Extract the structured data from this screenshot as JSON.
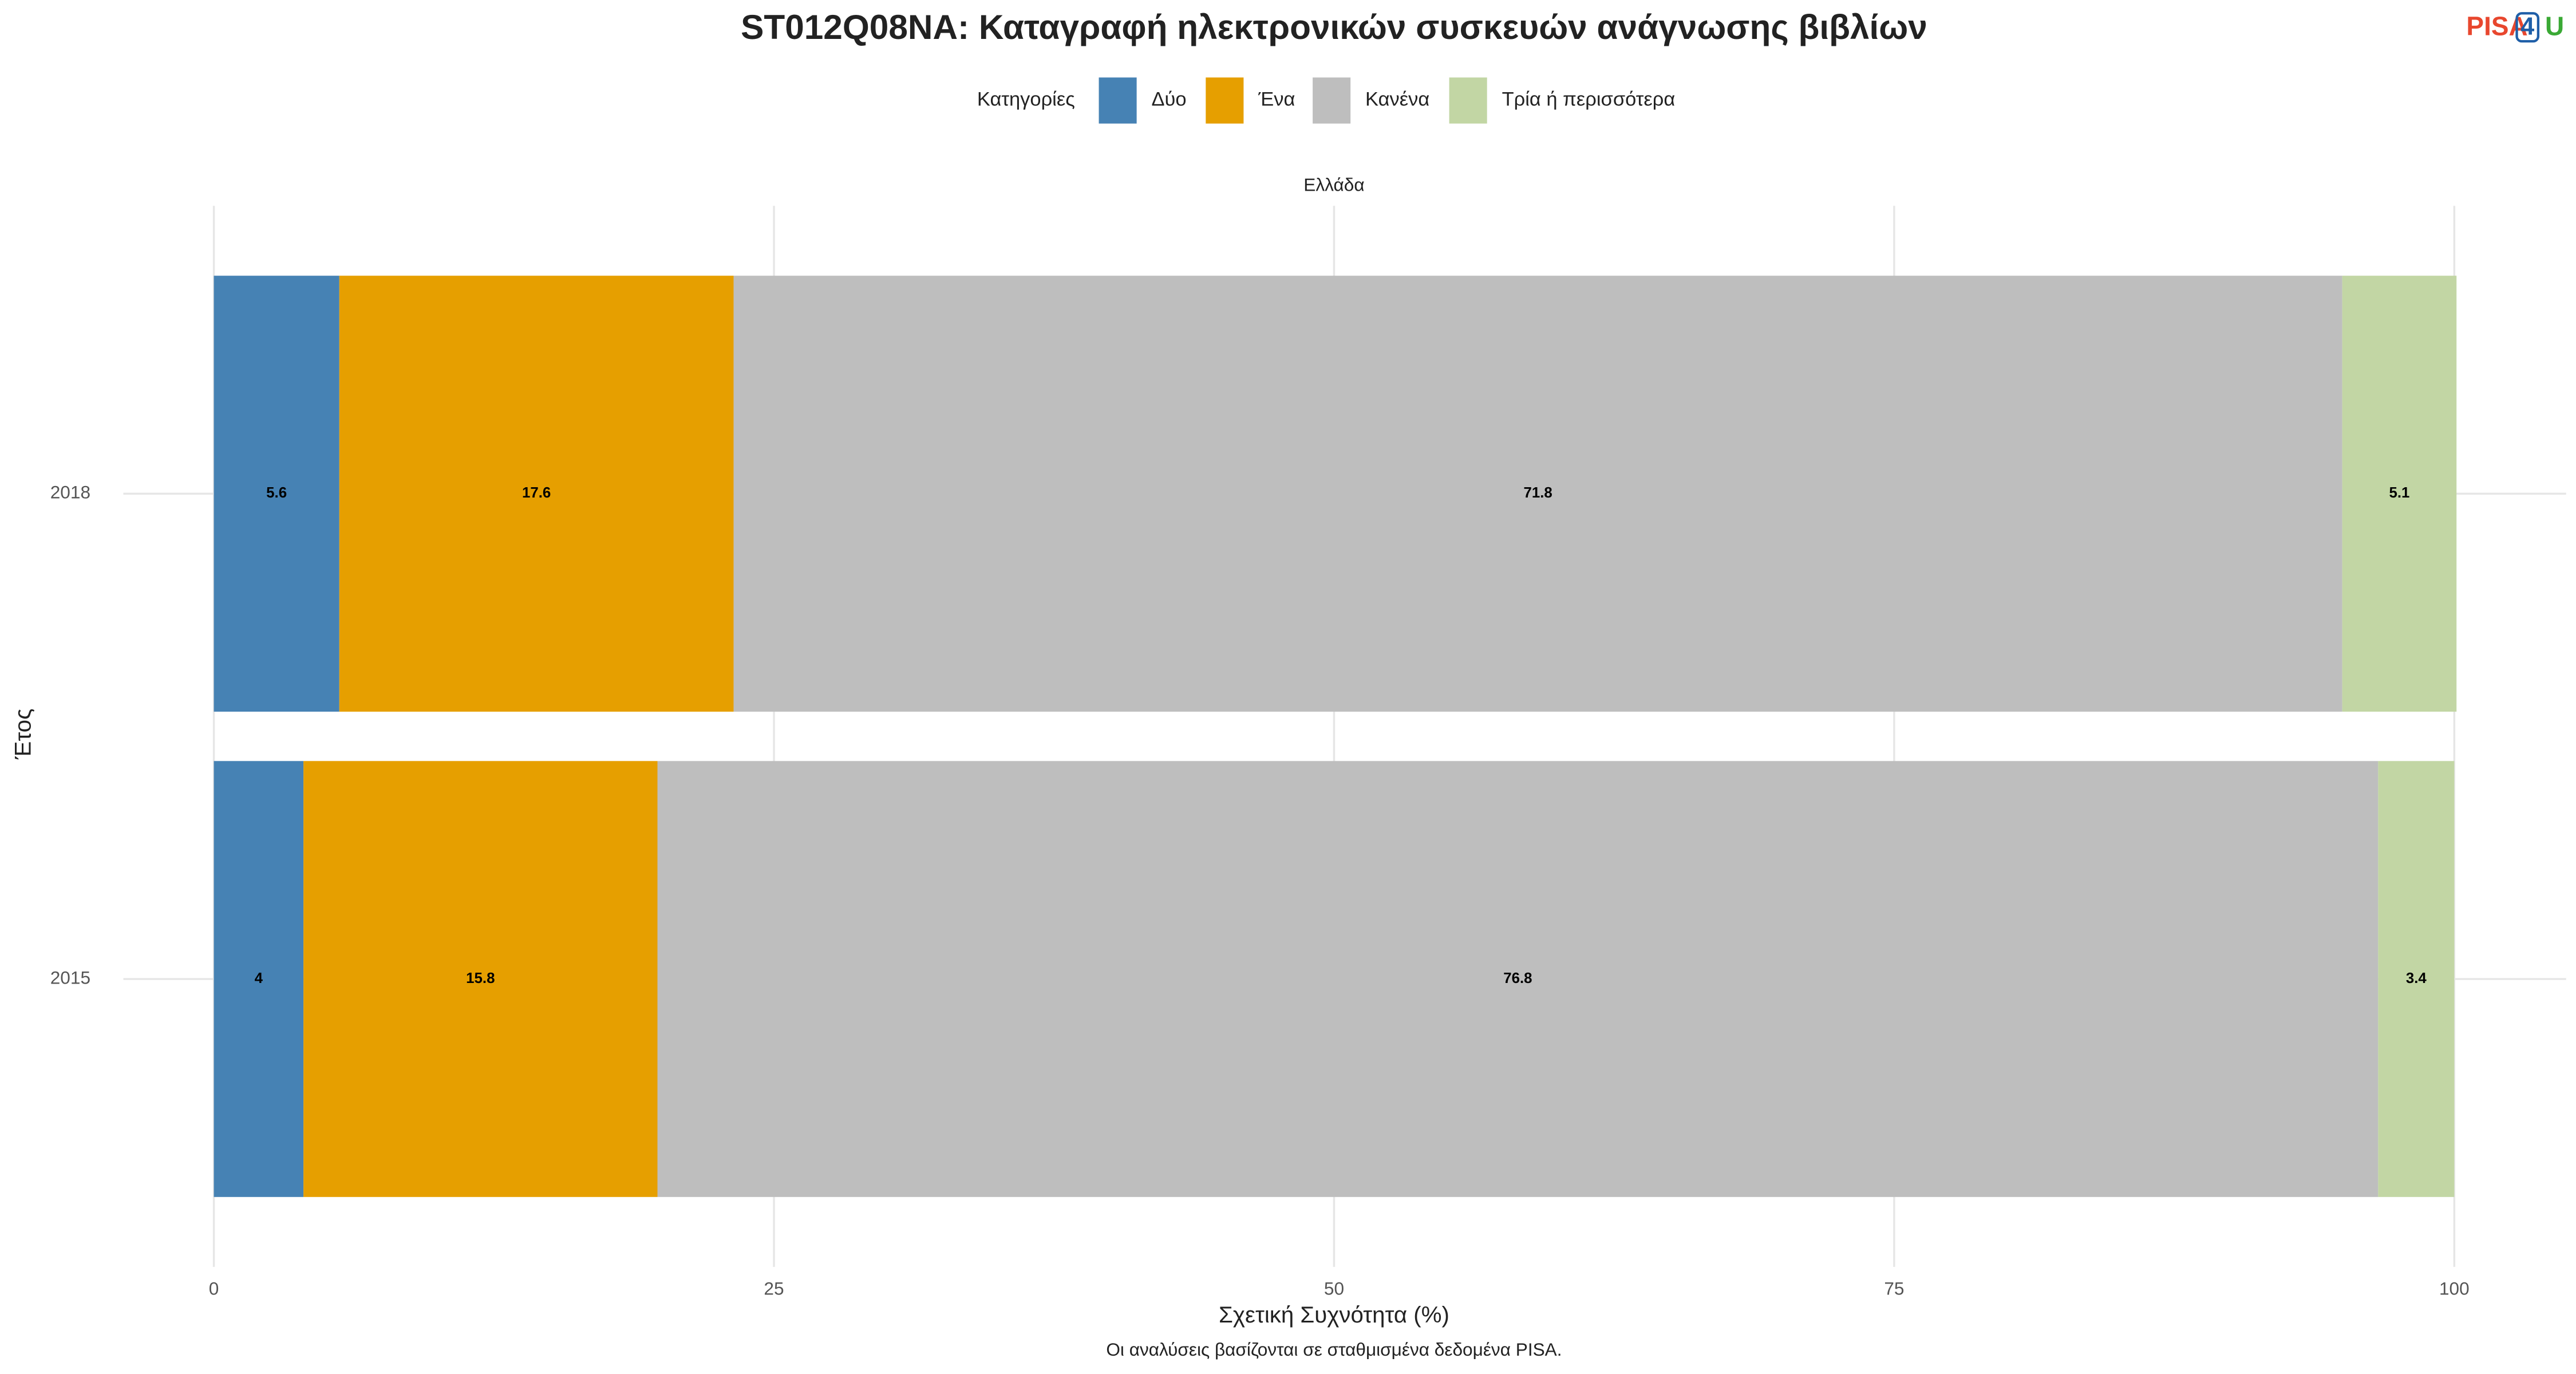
{
  "chart_data": {
    "type": "stacked-bar-horizontal",
    "title": "ST012Q08NA: Καταγραφή ηλεκτρονικών συσκευών ανάγνωσης βιβλίων",
    "logo": [
      "PISA",
      "4",
      "U"
    ],
    "legend_title": "Κατηγορίες",
    "facet": "Ελλάδα",
    "categories": [
      "2018",
      "2015"
    ],
    "series": [
      {
        "name": "Δύο",
        "color": "#4682b4",
        "values": [
          5.6,
          4
        ]
      },
      {
        "name": "Ένα",
        "color": "#e69f00",
        "values": [
          17.6,
          15.8
        ]
      },
      {
        "name": "Κανένα",
        "color": "#bebebe",
        "values": [
          71.8,
          76.8
        ]
      },
      {
        "name": "Τρία ή περισσότερα",
        "color": "#c2d6a4",
        "values": [
          5.1,
          3.4
        ]
      }
    ],
    "xlim": [
      0,
      100
    ],
    "xticks": [
      0,
      25,
      50,
      75,
      100
    ],
    "x_label": "Σχετική Συχνότητα (%)",
    "y_label": "Έτος",
    "caption": "Οι αναλύσεις βασίζονται σε σταθμισμένα δεδομένα PISA.",
    "grid": true,
    "legend_position": "top"
  }
}
